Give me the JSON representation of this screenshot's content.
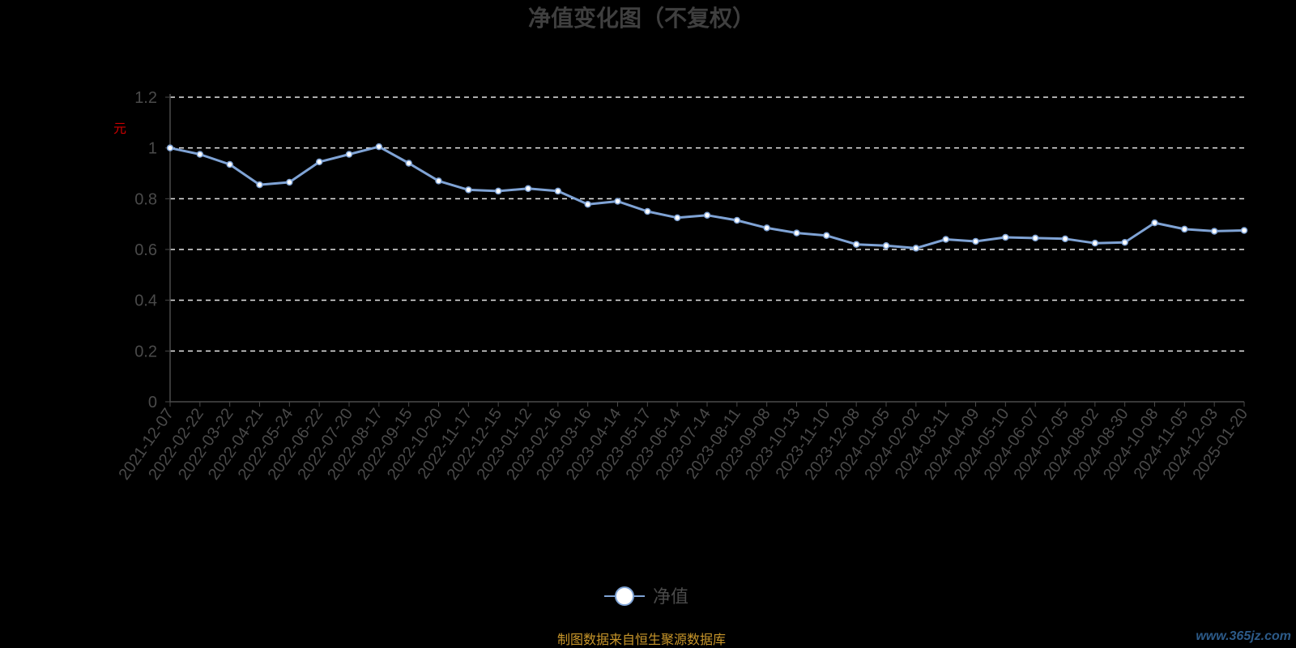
{
  "chart_data": {
    "type": "line",
    "title": "净值变化图（不复权）",
    "ylabel": "元",
    "ylim": [
      0,
      1.2
    ],
    "yticks": [
      "0",
      "0.2",
      "0.4",
      "0.6",
      "0.8",
      "1",
      "1.2"
    ],
    "grid": true,
    "legend_position": "bottom",
    "categories": [
      "2021-12-07",
      "2022-02-22",
      "2022-03-22",
      "2022-04-21",
      "2022-05-24",
      "2022-06-22",
      "2022-07-20",
      "2022-08-17",
      "2022-09-15",
      "2022-10-20",
      "2022-11-17",
      "2022-12-15",
      "2023-01-12",
      "2023-02-16",
      "2023-03-16",
      "2023-04-14",
      "2023-05-17",
      "2023-06-14",
      "2023-07-14",
      "2023-08-11",
      "2023-09-08",
      "2023-10-13",
      "2023-11-10",
      "2023-12-08",
      "2024-01-05",
      "2024-02-02",
      "2024-03-11",
      "2024-04-09",
      "2024-05-10",
      "2024-06-07",
      "2024-07-05",
      "2024-08-02",
      "2024-08-30",
      "2024-10-08",
      "2024-11-05",
      "2024-12-03",
      "2025-01-20"
    ],
    "series": [
      {
        "name": "净值",
        "color": "#7fa3d5",
        "values": [
          1.0,
          0.975,
          0.935,
          0.855,
          0.865,
          0.945,
          0.975,
          1.005,
          0.94,
          0.87,
          0.835,
          0.83,
          0.84,
          0.83,
          0.778,
          0.79,
          0.75,
          0.725,
          0.735,
          0.715,
          0.685,
          0.665,
          0.655,
          0.62,
          0.615,
          0.605,
          0.64,
          0.632,
          0.648,
          0.645,
          0.642,
          0.625,
          0.628,
          0.705,
          0.68,
          0.672,
          0.675
        ]
      }
    ]
  },
  "footer": {
    "source": "制图数据来自恒生聚源数据库",
    "watermark": "www.365jz.com"
  }
}
